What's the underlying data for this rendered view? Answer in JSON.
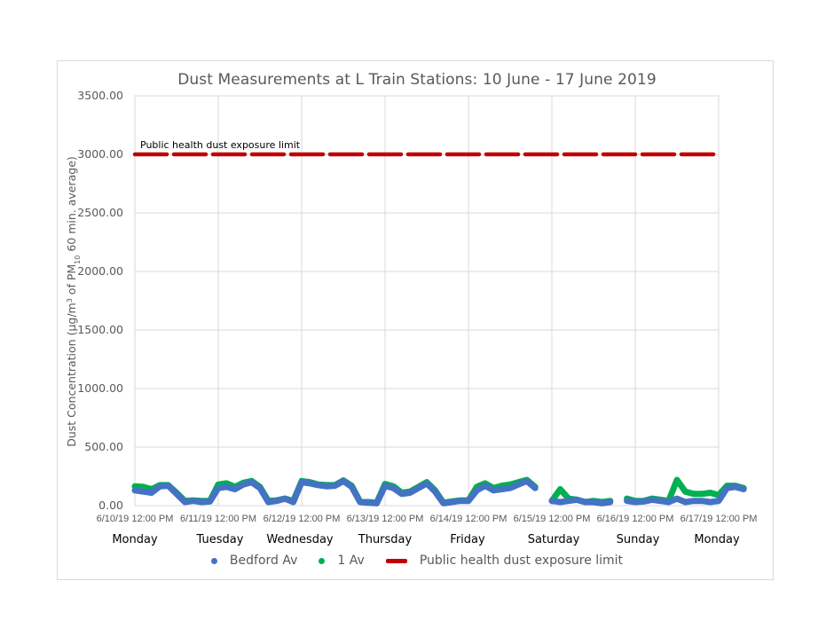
{
  "chart_data": {
    "type": "scatter",
    "title": "Dust Measurements at L Train Stations: 10 June - 17 June 2019",
    "xlabel": "",
    "ylabel": "Dust Concentration (µg/m³ of PM10 60 min. average)",
    "ylabel_parts": {
      "pre": "Dust Concentration (µg/m",
      "sup": "3",
      "mid": " of PM",
      "sub": "10",
      "post": " 60 min. average)"
    },
    "ylim": [
      0,
      3500
    ],
    "yticks": [
      "0.00",
      "500.00",
      "1000.00",
      "1500.00",
      "2000.00",
      "2500.00",
      "3000.00",
      "3500.00"
    ],
    "ytick_values": [
      0,
      500,
      1000,
      1500,
      2000,
      2500,
      3000,
      3500
    ],
    "xticks": [
      "6/10/19 12:00 PM",
      "6/11/19 12:00 PM",
      "6/12/19 12:00 PM",
      "6/13/19 12:00 PM",
      "6/14/19 12:00 PM",
      "6/15/19 12:00 PM",
      "6/16/19 12:00 PM",
      "6/17/19 12:00 PM"
    ],
    "day_labels": [
      "Monday",
      "Tuesday",
      "Wednesday",
      "Thursday",
      "Friday",
      "Saturday",
      "Sunday",
      "Monday"
    ],
    "grid": true,
    "legend_position": "bottom",
    "annotation": "Public health dust exposure limit",
    "x_unit": "days since 6/10/19 12:00 PM",
    "series": [
      {
        "name": "Bedford Av",
        "color": "#4472c4",
        "x": [
          0.0,
          0.1,
          0.2,
          0.3,
          0.4,
          0.5,
          0.6,
          0.7,
          0.8,
          0.9,
          1.0,
          1.1,
          1.2,
          1.3,
          1.4,
          1.5,
          1.6,
          1.7,
          1.8,
          1.9,
          2.0,
          2.1,
          2.2,
          2.3,
          2.4,
          2.5,
          2.6,
          2.7,
          2.8,
          2.9,
          3.0,
          3.1,
          3.2,
          3.3,
          3.4,
          3.5,
          3.6,
          3.7,
          3.8,
          3.9,
          4.0,
          4.1,
          4.2,
          4.3,
          4.4,
          4.5,
          4.6,
          4.7,
          4.8,
          4.9,
          5.0,
          5.1,
          5.2,
          5.3,
          5.4,
          5.5,
          5.6,
          5.7,
          5.8,
          5.9,
          6.0,
          6.1,
          6.2,
          6.3,
          6.4,
          6.5,
          6.6,
          6.7,
          6.8,
          6.9,
          7.0,
          7.1,
          7.2,
          7.3
        ],
        "values": [
          130,
          120,
          110,
          165,
          170,
          100,
          30,
          40,
          30,
          35,
          150,
          160,
          140,
          180,
          200,
          150,
          30,
          40,
          60,
          30,
          200,
          190,
          175,
          165,
          170,
          210,
          160,
          30,
          25,
          20,
          170,
          150,
          100,
          110,
          150,
          190,
          120,
          20,
          30,
          40,
          40,
          130,
          170,
          130,
          140,
          150,
          180,
          210,
          150,
          null,
          40,
          30,
          40,
          50,
          30,
          30,
          20,
          30,
          null,
          40,
          30,
          35,
          50,
          40,
          30,
          60,
          30,
          40,
          40,
          30,
          40,
          150,
          160,
          140
        ],
        "gap_between": [
          [
            4.85,
            4.95
          ],
          [
            5.75,
            5.85
          ]
        ]
      },
      {
        "name": "1 Av",
        "color": "#00b050",
        "x": [
          0.0,
          0.1,
          0.2,
          0.3,
          0.4,
          0.5,
          0.6,
          0.7,
          0.8,
          0.9,
          1.0,
          1.1,
          1.2,
          1.3,
          1.4,
          1.5,
          1.6,
          1.7,
          1.8,
          1.9,
          2.0,
          2.1,
          2.2,
          2.3,
          2.4,
          2.5,
          2.6,
          2.7,
          2.8,
          2.9,
          3.0,
          3.1,
          3.2,
          3.3,
          3.4,
          3.5,
          3.6,
          3.7,
          3.8,
          3.9,
          4.0,
          4.1,
          4.2,
          4.3,
          4.4,
          4.5,
          4.6,
          4.7,
          4.8,
          4.9,
          5.0,
          5.1,
          5.2,
          5.3,
          5.4,
          5.5,
          5.6,
          5.7,
          5.8,
          5.9,
          6.0,
          6.1,
          6.2,
          6.3,
          6.4,
          6.5,
          6.6,
          6.7,
          6.8,
          6.9,
          7.0,
          7.1,
          7.2,
          7.3
        ],
        "values": [
          165,
          160,
          140,
          175,
          175,
          110,
          40,
          45,
          40,
          40,
          180,
          190,
          160,
          195,
          210,
          160,
          40,
          45,
          60,
          40,
          210,
          200,
          180,
          175,
          175,
          215,
          170,
          35,
          30,
          25,
          185,
          165,
          110,
          120,
          160,
          200,
          130,
          25,
          35,
          45,
          45,
          160,
          190,
          150,
          170,
          180,
          200,
          220,
          160,
          null,
          40,
          140,
          60,
          50,
          30,
          40,
          30,
          40,
          null,
          60,
          40,
          40,
          60,
          50,
          40,
          220,
          120,
          100,
          100,
          110,
          90,
          170,
          170,
          150
        ],
        "gap_between": [
          [
            4.85,
            4.95
          ],
          [
            5.75,
            5.85
          ]
        ]
      },
      {
        "name": "Public health dust exposure limit",
        "color": "#c00000",
        "style": "dashed",
        "x": [
          0,
          7.0
        ],
        "values": [
          3000,
          3000
        ]
      }
    ]
  },
  "legend": {
    "items": [
      {
        "label": "Bedford Av",
        "marker": "dot",
        "color": "#4472c4"
      },
      {
        "label": "1 Av",
        "marker": "dot",
        "color": "#00b050"
      },
      {
        "label": "Public health dust exposure limit",
        "marker": "dash",
        "color": "#c00000"
      }
    ]
  }
}
